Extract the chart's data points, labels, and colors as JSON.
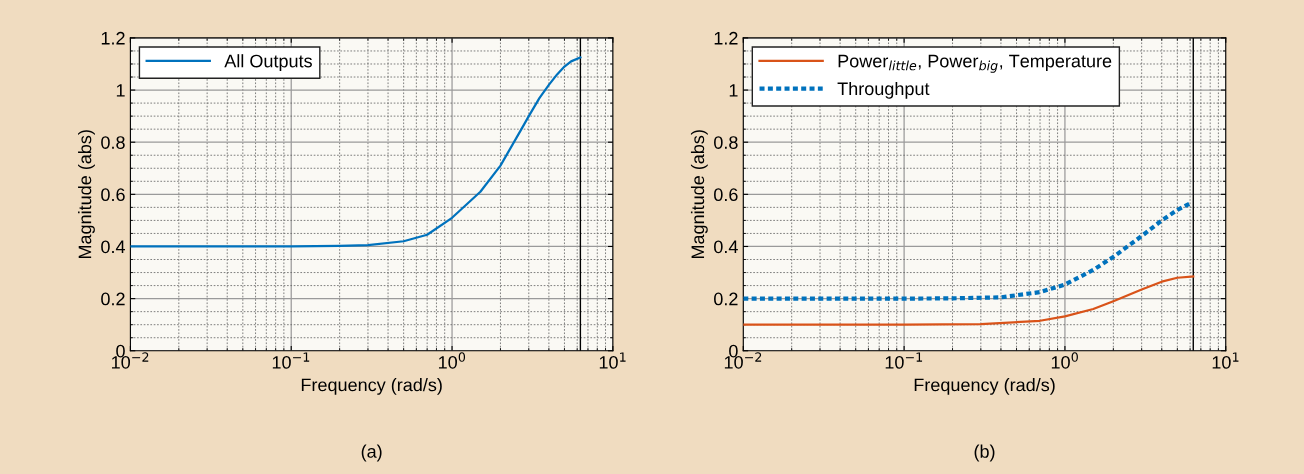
{
  "chart_data": [
    {
      "type": "line",
      "xlabel": "Frequency (rad/s)",
      "ylabel": "Magnitude (abs)",
      "annotations": [
        "(a)"
      ],
      "log": "x",
      "grid": true,
      "legend": "top left",
      "line_style": "solid",
      "xlim": [
        0.01,
        10
      ],
      "xticks": [
        {
          "value": 0.01,
          "label": "10$^{−2}$"
        },
        {
          "value": 0.1,
          "label": "10$^{−1}$"
        },
        {
          "value": 1,
          "label": "10$^{0}$"
        },
        {
          "value": 10,
          "label": "10$^{1}$"
        }
      ],
      "ylim": [
        0,
        1.2
      ],
      "yticks": [
        0,
        0.2,
        0.4,
        0.6,
        0.8,
        1,
        1.2
      ],
      "ref_lines": [
        {
          "axis": "x",
          "value": 6.28,
          "label": null,
          "color": "#000000"
        }
      ],
      "series": [
        {
          "name": "All Outputs",
          "color": "#0072bd",
          "x": [
            0.01,
            0.1,
            0.2,
            0.3,
            0.5,
            0.7,
            1,
            1.5,
            2,
            2.7,
            3,
            3.5,
            4,
            4.5,
            5,
            5.5,
            6.28
          ],
          "values": [
            0.4,
            0.4,
            0.402,
            0.405,
            0.42,
            0.445,
            0.51,
            0.61,
            0.71,
            0.85,
            0.9,
            0.97,
            1.02,
            1.06,
            1.09,
            1.11,
            1.125
          ]
        }
      ]
    },
    {
      "type": "line",
      "xlabel": "Frequency (rad/s)",
      "ylabel": "Magnitude (abs)",
      "annotations": [
        "(b)"
      ],
      "log": "x",
      "grid": true,
      "legend": "top left",
      "xlim": [
        0.01,
        10
      ],
      "xticks": [
        {
          "value": 0.01,
          "label": "10$^{−2}$"
        },
        {
          "value": 0.1,
          "label": "10$^{−1}$"
        },
        {
          "value": 1,
          "label": "10$^{0}$"
        },
        {
          "value": 10,
          "label": "10$^{1}$"
        }
      ],
      "ylim": [
        0,
        1.2
      ],
      "yticks": [
        0,
        0.2,
        0.4,
        0.6,
        0.8,
        1,
        1.2
      ],
      "ref_lines": [
        {
          "axis": "x",
          "value": 6.28,
          "label": null,
          "color": "#000000"
        }
      ],
      "series": [
        {
          "name": "Power$_{little}$, Power$_{big}$, Temperature",
          "color": "#d95319",
          "line_style": "solid",
          "x": [
            0.01,
            0.1,
            0.3,
            0.7,
            1,
            1.5,
            2,
            3,
            4,
            5,
            6.28
          ],
          "values": [
            0.1,
            0.1,
            0.102,
            0.115,
            0.132,
            0.16,
            0.19,
            0.235,
            0.265,
            0.28,
            0.285
          ]
        },
        {
          "name": "Throughput",
          "color": "#0072bd",
          "line_style": "dotted",
          "x": [
            0.01,
            0.1,
            0.2,
            0.4,
            0.7,
            1,
            1.5,
            2,
            3,
            4,
            5,
            6
          ],
          "values": [
            0.2,
            0.2,
            0.201,
            0.205,
            0.225,
            0.254,
            0.31,
            0.36,
            0.44,
            0.5,
            0.54,
            0.565
          ]
        }
      ]
    }
  ]
}
